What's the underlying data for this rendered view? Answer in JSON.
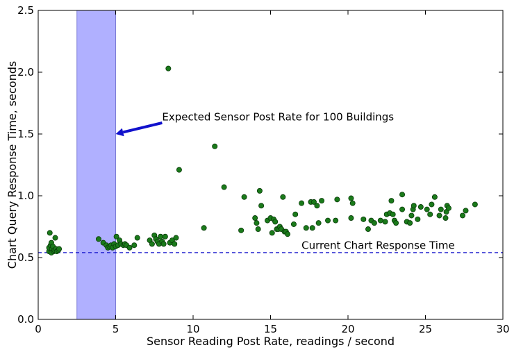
{
  "chart_data": {
    "type": "scatter",
    "title": "",
    "xlabel": "Sensor Reading Post Rate, readings / second",
    "ylabel": "Chart Query Response Time, seconds",
    "xlim": [
      0,
      30
    ],
    "ylim": [
      0.0,
      2.5
    ],
    "xticks": [
      "0",
      "5",
      "10",
      "15",
      "20",
      "25",
      "30"
    ],
    "yticks": [
      "0.0",
      "0.5",
      "1.0",
      "1.5",
      "2.0",
      "2.5"
    ],
    "grid": false,
    "marker_color": "#1a7a1a",
    "band": {
      "x_start": 2.5,
      "x_end": 5.0,
      "color": "#b0b0ff"
    },
    "hline": {
      "y": 0.54,
      "color": "#1111cc",
      "label": "Current Chart Response Time",
      "label_x": 17.0,
      "label_y": 0.57
    },
    "annotation": {
      "text": "Expected Sensor Post Rate for 100 Buildings",
      "text_x": 8.0,
      "text_y": 1.61,
      "arrow_from_x": 8.0,
      "arrow_from_y": 1.59,
      "arrow_to_x": 5.0,
      "arrow_to_y": 1.5,
      "color": "#1111cc"
    },
    "points": [
      {
        "x": 0.7,
        "y": 0.55
      },
      {
        "x": 0.7,
        "y": 0.58
      },
      {
        "x": 0.75,
        "y": 0.7
      },
      {
        "x": 0.8,
        "y": 0.6
      },
      {
        "x": 0.85,
        "y": 0.54
      },
      {
        "x": 0.85,
        "y": 0.62
      },
      {
        "x": 0.9,
        "y": 0.57
      },
      {
        "x": 0.95,
        "y": 0.59
      },
      {
        "x": 1.0,
        "y": 0.55
      },
      {
        "x": 1.05,
        "y": 0.56
      },
      {
        "x": 1.1,
        "y": 0.66
      },
      {
        "x": 1.15,
        "y": 0.57
      },
      {
        "x": 1.2,
        "y": 0.55
      },
      {
        "x": 1.3,
        "y": 0.56
      },
      {
        "x": 1.35,
        "y": 0.57
      },
      {
        "x": 3.9,
        "y": 0.65
      },
      {
        "x": 4.2,
        "y": 0.62
      },
      {
        "x": 4.4,
        "y": 0.6
      },
      {
        "x": 4.5,
        "y": 0.58
      },
      {
        "x": 4.6,
        "y": 0.59
      },
      {
        "x": 4.7,
        "y": 0.6
      },
      {
        "x": 4.8,
        "y": 0.58
      },
      {
        "x": 4.9,
        "y": 0.61
      },
      {
        "x": 5.0,
        "y": 0.59
      },
      {
        "x": 5.05,
        "y": 0.67
      },
      {
        "x": 5.15,
        "y": 0.6
      },
      {
        "x": 5.25,
        "y": 0.64
      },
      {
        "x": 5.35,
        "y": 0.61
      },
      {
        "x": 5.5,
        "y": 0.6
      },
      {
        "x": 5.6,
        "y": 0.61
      },
      {
        "x": 5.7,
        "y": 0.6
      },
      {
        "x": 5.9,
        "y": 0.58
      },
      {
        "x": 6.2,
        "y": 0.6
      },
      {
        "x": 6.4,
        "y": 0.66
      },
      {
        "x": 7.2,
        "y": 0.64
      },
      {
        "x": 7.35,
        "y": 0.61
      },
      {
        "x": 7.5,
        "y": 0.68
      },
      {
        "x": 7.6,
        "y": 0.65
      },
      {
        "x": 7.7,
        "y": 0.63
      },
      {
        "x": 7.8,
        "y": 0.61
      },
      {
        "x": 7.9,
        "y": 0.67
      },
      {
        "x": 8.0,
        "y": 0.63
      },
      {
        "x": 8.1,
        "y": 0.61
      },
      {
        "x": 8.2,
        "y": 0.67
      },
      {
        "x": 8.4,
        "y": 2.03
      },
      {
        "x": 8.5,
        "y": 0.62
      },
      {
        "x": 8.65,
        "y": 0.64
      },
      {
        "x": 8.8,
        "y": 0.61
      },
      {
        "x": 8.9,
        "y": 0.66
      },
      {
        "x": 9.1,
        "y": 1.21
      },
      {
        "x": 10.7,
        "y": 0.74
      },
      {
        "x": 11.4,
        "y": 1.4
      },
      {
        "x": 12.0,
        "y": 1.07
      },
      {
        "x": 13.1,
        "y": 0.72
      },
      {
        "x": 13.3,
        "y": 0.99
      },
      {
        "x": 14.0,
        "y": 0.82
      },
      {
        "x": 14.1,
        "y": 0.78
      },
      {
        "x": 14.2,
        "y": 0.73
      },
      {
        "x": 14.3,
        "y": 1.04
      },
      {
        "x": 14.4,
        "y": 0.92
      },
      {
        "x": 14.8,
        "y": 0.8
      },
      {
        "x": 15.0,
        "y": 0.82
      },
      {
        "x": 15.1,
        "y": 0.7
      },
      {
        "x": 15.2,
        "y": 0.81
      },
      {
        "x": 15.3,
        "y": 0.79
      },
      {
        "x": 15.4,
        "y": 0.73
      },
      {
        "x": 15.5,
        "y": 0.73
      },
      {
        "x": 15.6,
        "y": 0.75
      },
      {
        "x": 15.7,
        "y": 0.73
      },
      {
        "x": 15.8,
        "y": 0.99
      },
      {
        "x": 15.9,
        "y": 0.71
      },
      {
        "x": 16.0,
        "y": 0.71
      },
      {
        "x": 16.1,
        "y": 0.69
      },
      {
        "x": 16.5,
        "y": 0.77
      },
      {
        "x": 16.6,
        "y": 0.85
      },
      {
        "x": 17.0,
        "y": 0.94
      },
      {
        "x": 17.3,
        "y": 0.74
      },
      {
        "x": 17.6,
        "y": 0.95
      },
      {
        "x": 17.7,
        "y": 0.74
      },
      {
        "x": 17.8,
        "y": 0.95
      },
      {
        "x": 18.0,
        "y": 0.92
      },
      {
        "x": 18.1,
        "y": 0.78
      },
      {
        "x": 18.3,
        "y": 0.96
      },
      {
        "x": 18.7,
        "y": 0.8
      },
      {
        "x": 19.2,
        "y": 0.8
      },
      {
        "x": 19.3,
        "y": 0.97
      },
      {
        "x": 20.2,
        "y": 0.98
      },
      {
        "x": 20.3,
        "y": 0.94
      },
      {
        "x": 20.2,
        "y": 0.82
      },
      {
        "x": 21.0,
        "y": 0.81
      },
      {
        "x": 21.3,
        "y": 0.73
      },
      {
        "x": 21.5,
        "y": 0.8
      },
      {
        "x": 21.7,
        "y": 0.78
      },
      {
        "x": 22.1,
        "y": 0.8
      },
      {
        "x": 22.4,
        "y": 0.79
      },
      {
        "x": 22.5,
        "y": 0.85
      },
      {
        "x": 22.7,
        "y": 0.86
      },
      {
        "x": 22.8,
        "y": 0.96
      },
      {
        "x": 22.9,
        "y": 0.85
      },
      {
        "x": 23.0,
        "y": 0.8
      },
      {
        "x": 23.1,
        "y": 0.78
      },
      {
        "x": 23.5,
        "y": 0.89
      },
      {
        "x": 23.5,
        "y": 1.01
      },
      {
        "x": 23.8,
        "y": 0.79
      },
      {
        "x": 24.0,
        "y": 0.78
      },
      {
        "x": 24.1,
        "y": 0.84
      },
      {
        "x": 24.2,
        "y": 0.89
      },
      {
        "x": 24.25,
        "y": 0.92
      },
      {
        "x": 24.5,
        "y": 0.81
      },
      {
        "x": 24.7,
        "y": 0.91
      },
      {
        "x": 25.1,
        "y": 0.89
      },
      {
        "x": 25.3,
        "y": 0.85
      },
      {
        "x": 25.4,
        "y": 0.93
      },
      {
        "x": 25.6,
        "y": 0.99
      },
      {
        "x": 25.9,
        "y": 0.84
      },
      {
        "x": 26.0,
        "y": 0.89
      },
      {
        "x": 26.3,
        "y": 0.82
      },
      {
        "x": 26.35,
        "y": 0.87
      },
      {
        "x": 26.4,
        "y": 0.92
      },
      {
        "x": 26.5,
        "y": 0.9
      },
      {
        "x": 27.4,
        "y": 0.84
      },
      {
        "x": 27.6,
        "y": 0.88
      },
      {
        "x": 28.2,
        "y": 0.93
      }
    ]
  }
}
